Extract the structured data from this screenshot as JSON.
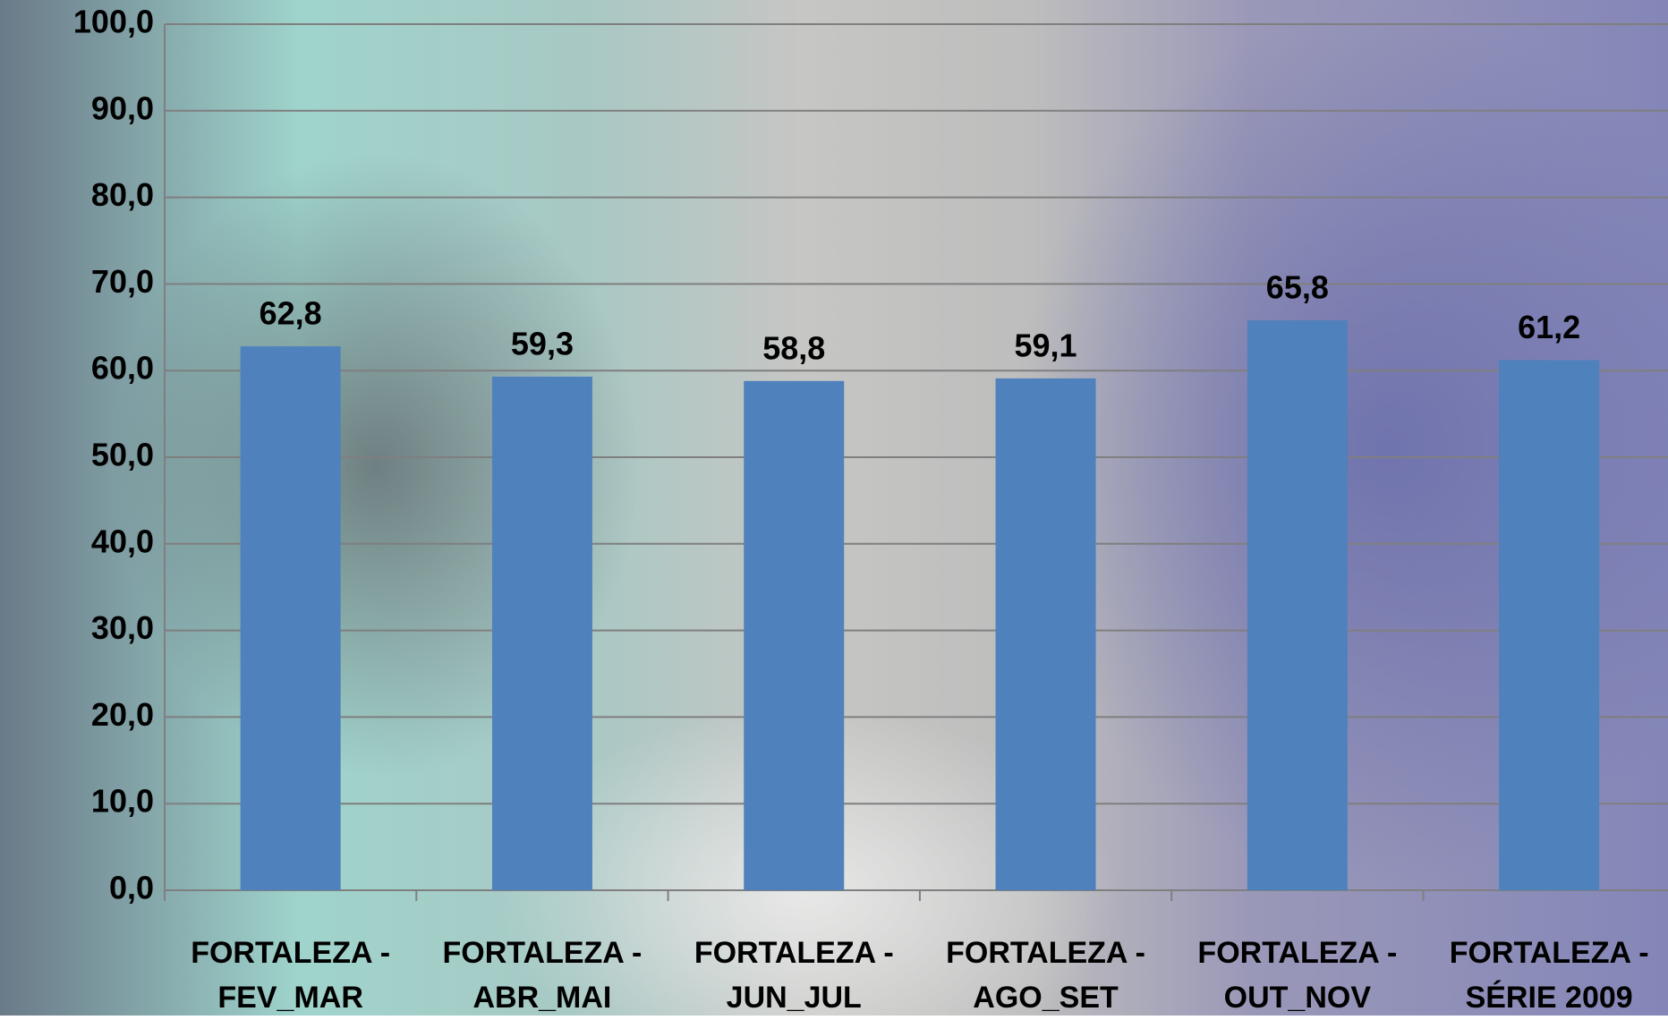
{
  "chart_data": {
    "type": "bar",
    "categories": [
      "FORTALEZA - FEV_MAR",
      "FORTALEZA - ABR_MAI",
      "FORTALEZA - JUN_JUL",
      "FORTALEZA - AGO_SET",
      "FORTALEZA - OUT_NOV",
      "FORTALEZA - SÉRIE 2009"
    ],
    "values": [
      62.8,
      59.3,
      58.8,
      59.1,
      65.8,
      61.2
    ],
    "value_labels": [
      "62,8",
      "59,3",
      "58,8",
      "59,1",
      "65,8",
      "61,2"
    ],
    "color": "#4f81bd",
    "ylim": [
      0,
      100
    ],
    "yticks": [
      {
        "value": 0,
        "label": "0,0"
      },
      {
        "value": 10,
        "label": "10,0"
      },
      {
        "value": 20,
        "label": "20,0"
      },
      {
        "value": 30,
        "label": "30,0"
      },
      {
        "value": 40,
        "label": "40,0"
      },
      {
        "value": 50,
        "label": "50,0"
      },
      {
        "value": 60,
        "label": "60,0"
      },
      {
        "value": 70,
        "label": "70,0"
      },
      {
        "value": 80,
        "label": "80,0"
      },
      {
        "value": 90,
        "label": "90,0"
      },
      {
        "value": 100,
        "label": "100,0"
      }
    ],
    "grid": true
  }
}
